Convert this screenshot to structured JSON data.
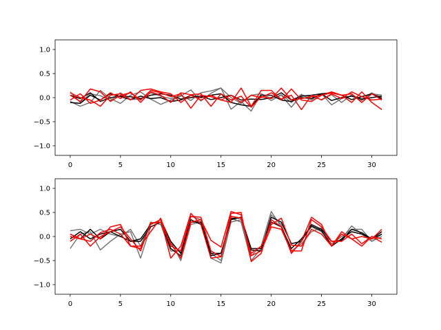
{
  "colors": {
    "gray_series": "#777777",
    "black_series": "#000000",
    "red_series": "#ff0000",
    "background": "#ffffff"
  },
  "chart_data": [
    {
      "type": "line",
      "title": "",
      "xlabel": "",
      "ylabel": "",
      "xlim": [
        -1.5,
        32.5
      ],
      "ylim": [
        -1.2,
        1.2
      ],
      "xticks": [
        0,
        5,
        10,
        15,
        20,
        25,
        30
      ],
      "xtick_labels": [
        "0",
        "5",
        "10",
        "15",
        "20",
        "25",
        "30"
      ],
      "yticks": [
        1.0,
        0.5,
        0.0,
        -0.5,
        -1.0
      ],
      "ytick_labels": [
        "1.0",
        "0.5",
        "0.0",
        "−0.5",
        "−1.0"
      ],
      "grid": false,
      "x": [
        0,
        1,
        2,
        3,
        4,
        5,
        6,
        7,
        8,
        9,
        10,
        11,
        12,
        13,
        14,
        15,
        16,
        17,
        18,
        19,
        20,
        21,
        22,
        23,
        24,
        25,
        26,
        27,
        28,
        29,
        30,
        31
      ],
      "series": [
        {
          "color": "gray_series",
          "values": [
            -0.08,
            -0.18,
            -0.1,
            0.15,
            -0.02,
            -0.12,
            0.05,
            0.12,
            -0.03,
            -0.14,
            -0.05,
            0.03,
            0.16,
            -0.07,
            0.09,
            0.2,
            -0.24,
            -0.08,
            -0.28,
            0.08,
            -0.02,
            0.06,
            -0.1,
            0.07,
            -0.05,
            0.08,
            -0.15,
            -0.02,
            0.04,
            -0.06,
            0.1,
            0.0
          ]
        },
        {
          "color": "gray_series",
          "values": [
            0.12,
            -0.1,
            0.08,
            0.04,
            -0.06,
            0.1,
            -0.04,
            -0.03,
            0.1,
            0.03,
            -0.02,
            0.05,
            -0.06,
            0.1,
            0.14,
            0.2,
            0.0,
            -0.12,
            0.05,
            0.08,
            -0.06,
            0.05,
            -0.2,
            0.05,
            0.02,
            -0.04,
            0.06,
            -0.1,
            0.06,
            -0.04,
            0.08,
            0.05
          ]
        },
        {
          "color": "black_series",
          "values": [
            -0.1,
            -0.12,
            0.05,
            -0.05,
            0.08,
            0.02,
            -0.04,
            0.03,
            -0.02,
            0.0,
            -0.08,
            -0.05,
            0.05,
            0.0,
            0.05,
            0.08,
            -0.1,
            -0.15,
            -0.18,
            0.05,
            0.05,
            -0.05,
            -0.08,
            0.0,
            -0.02,
            0.08,
            0.1,
            0.05,
            -0.04,
            0.02,
            0.08,
            -0.02
          ]
        },
        {
          "color": "black_series",
          "values": [
            0.05,
            -0.02,
            0.1,
            -0.08,
            0.0,
            0.03,
            0.02,
            -0.02,
            0.05,
            0.08,
            0.05,
            -0.03,
            0.0,
            0.03,
            -0.04,
            0.0,
            0.05,
            -0.05,
            -0.03,
            -0.04,
            0.0,
            0.1,
            -0.05,
            0.03,
            0.05,
            0.08,
            -0.06,
            0.0,
            0.03,
            -0.03,
            0.0,
            0.03
          ]
        },
        {
          "color": "red_series",
          "values": [
            0.05,
            -0.08,
            0.18,
            0.12,
            -0.08,
            0.05,
            0.1,
            -0.05,
            0.15,
            0.1,
            0.02,
            0.08,
            -0.22,
            0.05,
            0.02,
            -0.05,
            -0.1,
            0.2,
            -0.18,
            0.15,
            0.15,
            -0.05,
            0.18,
            -0.05,
            -0.08,
            0.05,
            0.12,
            0.05,
            0.08,
            -0.1,
            0.08,
            -0.05
          ]
        },
        {
          "color": "red_series",
          "values": [
            -0.05,
            0.08,
            -0.12,
            -0.05,
            0.1,
            -0.02,
            0.12,
            -0.1,
            0.12,
            0.05,
            -0.1,
            0.1,
            0.06,
            0.08,
            -0.18,
            0.08,
            -0.05,
            0.03,
            -0.2,
            0.02,
            -0.02,
            0.2,
            -0.05,
            -0.02,
            0.02,
            0.05,
            0.1,
            0.05,
            -0.1,
            0.12,
            -0.1,
            -0.25
          ]
        },
        {
          "color": "red_series",
          "values": [
            0.1,
            0.0,
            -0.05,
            -0.18,
            0.05,
            0.08,
            -0.05,
            0.15,
            0.18,
            0.12,
            0.08,
            -0.1,
            0.05,
            -0.05,
            0.05,
            -0.05,
            0.05,
            -0.1,
            0.05,
            0.0,
            0.1,
            -0.03,
            0.05,
            -0.25,
            0.05,
            -0.05,
            0.08,
            -0.02,
            0.12,
            0.02,
            -0.05,
            -0.03
          ]
        }
      ]
    },
    {
      "type": "line",
      "title": "",
      "xlabel": "",
      "ylabel": "",
      "xlim": [
        -1.5,
        32.5
      ],
      "ylim": [
        -1.2,
        1.2
      ],
      "xticks": [
        0,
        5,
        10,
        15,
        20,
        25,
        30
      ],
      "xtick_labels": [
        "0",
        "5",
        "10",
        "15",
        "20",
        "25",
        "30"
      ],
      "yticks": [
        1.0,
        0.5,
        0.0,
        -0.5,
        -1.0
      ],
      "ytick_labels": [
        "1.0",
        "0.5",
        "0.0",
        "−0.5",
        "−1.0"
      ],
      "grid": false,
      "x": [
        0,
        1,
        2,
        3,
        4,
        5,
        6,
        7,
        8,
        9,
        10,
        11,
        12,
        13,
        14,
        15,
        16,
        17,
        18,
        19,
        20,
        21,
        22,
        23,
        24,
        25,
        26,
        27,
        28,
        29,
        30,
        31
      ],
      "series": [
        {
          "color": "gray_series",
          "values": [
            -0.25,
            0.05,
            0.1,
            -0.28,
            -0.1,
            0.05,
            0.1,
            -0.45,
            0.2,
            0.3,
            -0.1,
            -0.5,
            0.25,
            0.3,
            -0.45,
            -0.55,
            0.3,
            0.35,
            -0.4,
            -0.2,
            0.52,
            0.2,
            -0.3,
            -0.15,
            0.1,
            0.18,
            -0.2,
            -0.05,
            0.22,
            0.05,
            -0.1,
            0.05
          ]
        },
        {
          "color": "gray_series",
          "values": [
            0.12,
            0.15,
            0.05,
            0.15,
            0.05,
            0.0,
            0.15,
            -0.2,
            0.3,
            0.25,
            -0.3,
            -0.3,
            0.42,
            0.35,
            -0.35,
            -0.5,
            0.38,
            0.3,
            -0.5,
            -0.25,
            0.45,
            0.25,
            -0.35,
            -0.08,
            0.2,
            0.1,
            -0.15,
            0.0,
            0.15,
            0.15,
            -0.1,
            0.0
          ]
        },
        {
          "color": "black_series",
          "values": [
            0.05,
            -0.05,
            0.15,
            -0.05,
            0.1,
            0.15,
            -0.1,
            -0.1,
            0.2,
            0.3,
            -0.25,
            -0.4,
            0.3,
            0.3,
            -0.35,
            -0.35,
            0.38,
            0.38,
            -0.28,
            -0.3,
            0.4,
            0.3,
            -0.15,
            -0.1,
            0.25,
            0.15,
            -0.1,
            -0.08,
            0.15,
            0.08,
            -0.05,
            0.05
          ]
        },
        {
          "color": "black_series",
          "values": [
            -0.05,
            0.1,
            -0.05,
            0.05,
            0.1,
            0.0,
            -0.1,
            -0.05,
            0.25,
            0.35,
            -0.1,
            -0.35,
            0.35,
            0.25,
            -0.4,
            -0.35,
            0.35,
            0.4,
            -0.25,
            -0.25,
            0.3,
            0.2,
            -0.25,
            -0.05,
            0.22,
            0.12,
            -0.2,
            -0.05,
            0.1,
            0.05,
            -0.05,
            0.1
          ]
        },
        {
          "color": "red_series",
          "values": [
            0.0,
            -0.05,
            0.05,
            -0.05,
            0.2,
            0.25,
            -0.2,
            -0.25,
            0.25,
            0.35,
            -0.45,
            -0.2,
            0.48,
            0.25,
            -0.45,
            -0.42,
            0.48,
            0.5,
            -0.52,
            -0.35,
            0.35,
            0.2,
            -0.35,
            -0.1,
            0.4,
            0.25,
            -0.2,
            0.1,
            -0.05,
            0.0,
            -0.05,
            0.15
          ]
        },
        {
          "color": "red_series",
          "values": [
            -0.1,
            0.05,
            -0.2,
            0.0,
            0.1,
            0.2,
            -0.05,
            -0.3,
            0.28,
            0.3,
            -0.15,
            -0.45,
            0.3,
            0.35,
            -0.08,
            -0.22,
            0.52,
            0.45,
            -0.4,
            -0.3,
            0.2,
            0.15,
            -0.3,
            -0.3,
            0.35,
            0.2,
            -0.1,
            -0.1,
            0.05,
            -0.15,
            0.0,
            -0.05
          ]
        },
        {
          "color": "red_series",
          "values": [
            0.05,
            -0.05,
            -0.1,
            0.08,
            0.15,
            0.05,
            -0.2,
            -0.2,
            0.1,
            0.38,
            -0.2,
            -0.3,
            0.42,
            0.4,
            -0.3,
            -0.42,
            0.42,
            0.38,
            -0.35,
            -0.2,
            0.25,
            0.38,
            -0.18,
            -0.2,
            0.15,
            0.05,
            -0.2,
            0.05,
            -0.05,
            -0.2,
            0.0,
            -0.12
          ]
        }
      ]
    }
  ]
}
